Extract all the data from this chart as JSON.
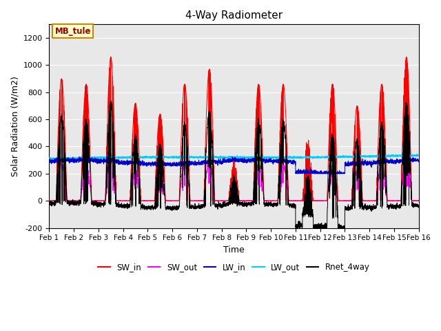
{
  "title": "4-Way Radiometer",
  "xlabel": "Time",
  "ylabel": "Solar Radiation (W/m2)",
  "ylim": [
    -200,
    1300
  ],
  "xlim": [
    0,
    15
  ],
  "yticks": [
    -200,
    0,
    200,
    400,
    600,
    800,
    1000,
    1200
  ],
  "xtick_labels": [
    "Feb 1",
    "Feb 2",
    "Feb 3",
    "Feb 4",
    "Feb 5",
    "Feb 6",
    "Feb 7",
    "Feb 8",
    "Feb 9",
    "Feb 10",
    "Feb 11",
    "Feb 12",
    "Feb 13",
    "Feb 14",
    "Feb 15",
    "Feb 16"
  ],
  "colors": {
    "SW_in": "#ff0000",
    "SW_out": "#ff00ff",
    "LW_in": "#0000cc",
    "LW_out": "#00ccff",
    "Rnet_4way": "#000000"
  },
  "annotation": "MB_tule",
  "annotation_bg": "#ffffcc",
  "annotation_border": "#cc8800",
  "facecolor": "#e8e8e8"
}
